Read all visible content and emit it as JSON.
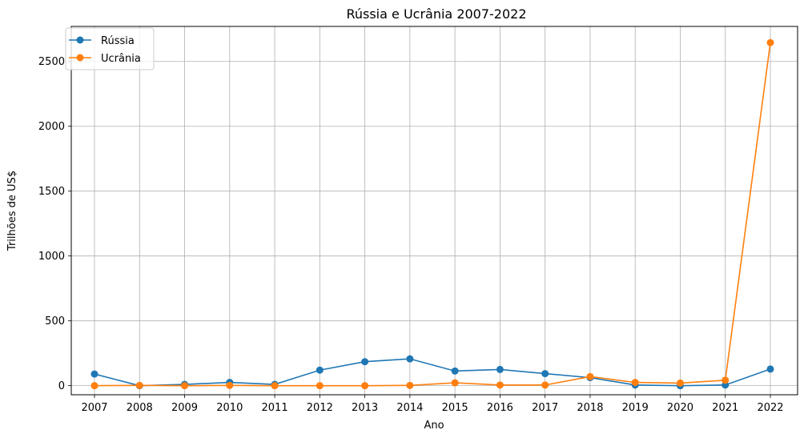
{
  "chart_data": {
    "type": "line",
    "title": "Rússia e Ucrânia 2007-2022",
    "xlabel": "Ano",
    "ylabel": "Trilhões de US$",
    "categories": [
      "2007",
      "2008",
      "2009",
      "2010",
      "2011",
      "2012",
      "2013",
      "2014",
      "2015",
      "2016",
      "2017",
      "2018",
      "2019",
      "2020",
      "2021",
      "2022"
    ],
    "yticks": [
      "0",
      "500",
      "1000",
      "1500",
      "2000",
      "2500"
    ],
    "ylim": [
      -70,
      2770
    ],
    "grid": true,
    "legend_position": "top-left",
    "series": [
      {
        "name": "Rússia",
        "color": "#1f77b4",
        "values": [
          90,
          0,
          10,
          25,
          10,
          120,
          185,
          207,
          113,
          125,
          93,
          62,
          5,
          0,
          5,
          128
        ]
      },
      {
        "name": "Ucrânia",
        "color": "#ff7f0e",
        "values": [
          0,
          2,
          0,
          2,
          0,
          0,
          0,
          2,
          22,
          5,
          5,
          70,
          25,
          20,
          42,
          2645
        ]
      }
    ]
  }
}
